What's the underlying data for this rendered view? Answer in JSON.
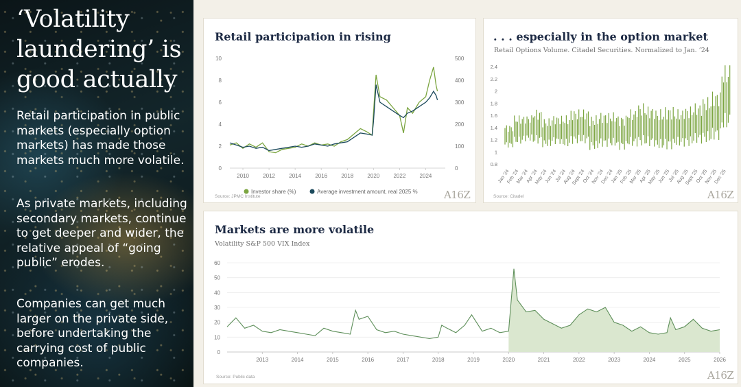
{
  "sidebar": {
    "title_lines": [
      "‘Volatility",
      "laundering’ is",
      "good actually"
    ],
    "paragraphs": [
      "Retail participation in public markets (especially option markets) has made those markets much more volatile.",
      "As private markets, including secondary markets, continue to get deeper and wider, the relative appeal of “going public” erodes.",
      "Companies can get much larger on the private side, before undertaking the carrying cost of public companies."
    ]
  },
  "colors": {
    "green": "#7ba540",
    "navy": "#1c4a5c",
    "vix_line": "#5e8f5a",
    "vix_fill": "#dae7cf",
    "title": "#1d2a44"
  },
  "logo_text": "A16Z",
  "cards": {
    "retail": {
      "title": "Retail participation in rising",
      "source": "Source: JPMC Institute"
    },
    "options": {
      "title": ". . . especially in the option market",
      "subtitle": "Retail Options Volume. Citadel Securities. Normalized to Jan. ’24",
      "source": "Source: Citadel"
    },
    "vix": {
      "title": "Markets are more volatile",
      "subtitle": "Volatility S&P 500 VIX Index",
      "source": "Source: Public data"
    }
  },
  "chart_data": [
    {
      "type": "line",
      "title": "Retail participation in rising",
      "x_tick_labels": [
        "2010",
        "2012",
        "2014",
        "2016",
        "2018",
        "2020",
        "2022",
        "2024"
      ],
      "y_left": {
        "lim": [
          0,
          10
        ],
        "ticks": [
          0,
          2,
          4,
          6,
          8,
          10
        ]
      },
      "y_right": {
        "lim": [
          0,
          500
        ],
        "ticks": [
          0,
          100,
          200,
          300,
          400,
          500
        ]
      },
      "legend": "bottom",
      "series": [
        {
          "name": "Investor share (%)",
          "axis": "left",
          "x": [
            2009.0,
            2009.5,
            2010.0,
            2010.5,
            2011.0,
            2011.5,
            2012.0,
            2012.5,
            2013.0,
            2013.5,
            2014.0,
            2014.5,
            2015.0,
            2015.5,
            2016.0,
            2016.5,
            2017.0,
            2017.5,
            2018.0,
            2018.5,
            2019.0,
            2019.5,
            2019.9,
            2020.0,
            2020.2,
            2020.5,
            2021.0,
            2021.5,
            2022.0,
            2022.3,
            2022.6,
            2023.0,
            2023.5,
            2024.0,
            2024.3,
            2024.6,
            2024.8,
            2024.9
          ],
          "values": [
            2.1,
            2.3,
            1.8,
            2.2,
            1.9,
            2.3,
            1.5,
            1.4,
            1.7,
            1.8,
            1.9,
            2.2,
            2.0,
            2.3,
            2.1,
            2.2,
            2.0,
            2.4,
            2.6,
            3.1,
            3.6,
            3.3,
            3.0,
            5.0,
            8.5,
            6.5,
            6.2,
            5.5,
            4.8,
            3.2,
            5.5,
            5.0,
            6.0,
            6.5,
            8.0,
            9.2,
            7.5,
            7.0
          ]
        },
        {
          "name": "Average investment amount, real 2025 %",
          "axis": "right",
          "x": [
            2009.0,
            2009.5,
            2010.0,
            2010.5,
            2011.0,
            2011.5,
            2012.0,
            2012.5,
            2013.0,
            2013.5,
            2014.0,
            2014.5,
            2015.0,
            2015.5,
            2016.0,
            2016.5,
            2017.0,
            2017.5,
            2018.0,
            2018.5,
            2019.0,
            2019.5,
            2019.9,
            2020.0,
            2020.2,
            2020.5,
            2021.0,
            2021.5,
            2022.0,
            2022.3,
            2022.6,
            2023.0,
            2023.5,
            2024.0,
            2024.3,
            2024.6,
            2024.8,
            2024.9
          ],
          "values": [
            115,
            105,
            95,
            100,
            90,
            95,
            80,
            85,
            90,
            95,
            100,
            95,
            100,
            110,
            105,
            100,
            110,
            115,
            120,
            140,
            160,
            155,
            150,
            210,
            380,
            300,
            280,
            260,
            240,
            230,
            250,
            260,
            280,
            300,
            320,
            350,
            330,
            310
          ]
        }
      ]
    },
    {
      "type": "bar",
      "title": ". . . especially in the option market",
      "subtitle": "Retail Options Volume. Citadel Securities. Normalized to Jan. ’24",
      "categories": [
        "Jan '24",
        "Feb '24",
        "Mar '24",
        "Apr '24",
        "May '24",
        "Jun '24",
        "Jul '24",
        "Aug '24",
        "Sept '24",
        "Oct '24",
        "Nov '24",
        "Dec '24",
        "Jan '25",
        "Feb '25",
        "Mar '25",
        "Apr '25",
        "May '25",
        "Jun '25",
        "Jul '25",
        "Aug '25",
        "Sept '25",
        "Oct '25",
        "Nov '25",
        "Dec '25"
      ],
      "ylim": [
        0.8,
        2.4
      ],
      "y_ticks": [
        0.8,
        1.0,
        1.2,
        1.4,
        1.6,
        1.8,
        2.0,
        2.2,
        2.4
      ],
      "values": [
        1.15,
        1.3,
        1.35,
        1.4,
        1.3,
        1.35,
        1.35,
        1.45,
        1.5,
        1.4,
        1.45,
        1.45,
        1.4,
        1.45,
        1.5,
        1.5,
        1.45,
        1.45,
        1.45,
        1.5,
        1.55,
        1.6,
        1.6,
        1.8
      ],
      "ranges": [
        [
          1.05,
          1.45
        ],
        [
          1.1,
          1.6
        ],
        [
          1.15,
          1.6
        ],
        [
          1.1,
          1.7
        ],
        [
          1.05,
          1.55
        ],
        [
          1.1,
          1.6
        ],
        [
          1.05,
          1.6
        ],
        [
          1.1,
          1.7
        ],
        [
          1.1,
          1.7
        ],
        [
          1.0,
          1.6
        ],
        [
          1.05,
          1.65
        ],
        [
          1.05,
          1.65
        ],
        [
          1.0,
          1.6
        ],
        [
          1.05,
          1.7
        ],
        [
          1.05,
          1.8
        ],
        [
          1.05,
          1.75
        ],
        [
          1.0,
          1.7
        ],
        [
          1.0,
          1.75
        ],
        [
          1.05,
          1.7
        ],
        [
          1.05,
          1.75
        ],
        [
          1.1,
          1.8
        ],
        [
          1.1,
          1.9
        ],
        [
          1.15,
          2.0
        ],
        [
          1.3,
          2.42
        ]
      ]
    },
    {
      "type": "area",
      "title": "Markets are more volatile",
      "subtitle": "Volatility S&P 500 VIX Index",
      "x_tick_labels": [
        "2013",
        "2014",
        "2015",
        "2016",
        "2017",
        "2018",
        "2019",
        "2020",
        "2021",
        "2022",
        "2023",
        "2024",
        "2025",
        "2026"
      ],
      "ylim": [
        0,
        60
      ],
      "y_ticks": [
        0,
        10,
        20,
        30,
        40,
        50,
        60
      ],
      "shaded_from": 2020.0,
      "x": [
        2012.0,
        2012.25,
        2012.5,
        2012.75,
        2013.0,
        2013.25,
        2013.5,
        2013.75,
        2014.0,
        2014.25,
        2014.5,
        2014.75,
        2015.0,
        2015.25,
        2015.5,
        2015.65,
        2015.75,
        2016.0,
        2016.25,
        2016.5,
        2016.75,
        2017.0,
        2017.25,
        2017.5,
        2017.75,
        2018.0,
        2018.1,
        2018.25,
        2018.5,
        2018.75,
        2018.95,
        2019.25,
        2019.5,
        2019.75,
        2020.0,
        2020.15,
        2020.25,
        2020.5,
        2020.75,
        2021.0,
        2021.25,
        2021.5,
        2021.75,
        2022.0,
        2022.25,
        2022.5,
        2022.75,
        2023.0,
        2023.25,
        2023.5,
        2023.75,
        2024.0,
        2024.25,
        2024.5,
        2024.6,
        2024.75,
        2025.0,
        2025.25,
        2025.5,
        2025.75,
        2026.0
      ],
      "values": [
        17,
        23,
        16,
        18,
        14,
        13,
        15,
        14,
        13,
        12,
        11,
        16,
        14,
        13,
        12,
        28,
        22,
        24,
        15,
        13,
        14,
        12,
        11,
        10,
        9,
        10,
        18,
        16,
        13,
        18,
        25,
        14,
        16,
        13,
        14,
        56,
        35,
        27,
        28,
        22,
        19,
        16,
        18,
        25,
        29,
        27,
        30,
        20,
        18,
        14,
        17,
        13,
        12,
        13,
        23,
        15,
        17,
        22,
        16,
        14,
        15
      ]
    }
  ]
}
